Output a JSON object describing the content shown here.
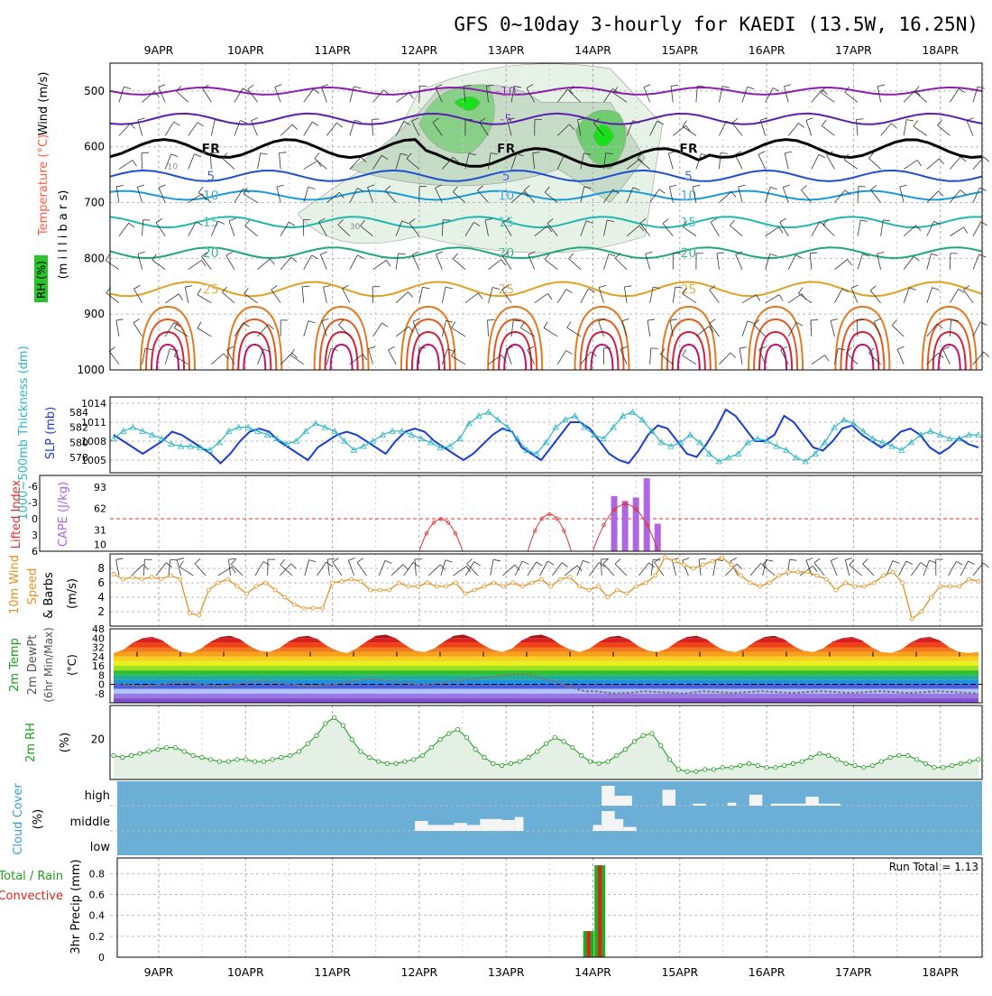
{
  "chart_data": {
    "title": "GFS 0~10day 3-hourly for KAEDI (13.5W, 16.25N)",
    "date_labels": [
      "9APR",
      "10APR",
      "11APR",
      "12APR",
      "13APR",
      "14APR",
      "15APR",
      "16APR",
      "17APR",
      "18APR"
    ],
    "panels": [
      {
        "id": "upper-air",
        "type": "contour",
        "ylabel_parts": [
          {
            "text": "Wind (m/s)",
            "color": "#000000"
          },
          {
            "text": "Temperature (°C)",
            "color": "#ff5a3c"
          },
          {
            "text": "(m i l l i b a r s)",
            "color": "#000000"
          },
          {
            "text": "RH (%)",
            "color": "#1ea51e"
          }
        ],
        "y_ticks": [
          "500",
          "600",
          "700",
          "800",
          "900",
          "1000"
        ],
        "ylim": [
          450,
          1000
        ],
        "temperature_isotherms": [
          {
            "label": "-10",
            "color": "#8a1fb0"
          },
          {
            "label": "-5",
            "color": "#5a1fb0"
          },
          {
            "label": "FR",
            "color": "#000000"
          },
          {
            "label": "5",
            "color": "#1f4fd0"
          },
          {
            "label": "10",
            "color": "#1a9ad8"
          },
          {
            "label": "15",
            "color": "#1fb8b0"
          },
          {
            "label": "20",
            "color": "#1fa878"
          },
          {
            "label": "25",
            "color": "#e0a020"
          }
        ],
        "rh_contours": [
          "10",
          "30"
        ]
      },
      {
        "id": "thickness-slp",
        "type": "line",
        "ylabel_left": "1000~500mb Thickness (dm)",
        "ylabel_right": "SLP (mb)",
        "left_ticks": [
          "584",
          "582",
          "580",
          "578"
        ],
        "right_ticks": [
          "1014",
          "1011",
          "1008",
          "1005"
        ],
        "series": [
          {
            "name": "1000~500mb Thickness (dm)",
            "color": "#29b6c6",
            "marker": "triangle",
            "ylim": [
              576,
              586
            ],
            "values": [
              580.5,
              581.5,
              582,
              581.5,
              581,
              580.5,
              579.8,
              579.5,
              579.5,
              579.3,
              579,
              580,
              581.5,
              582,
              582,
              581.5,
              581,
              580.5,
              579.8,
              580.2,
              581.5,
              582.5,
              582,
              581.5,
              580.2,
              579,
              579.5,
              580.2,
              581,
              581.5,
              581.5,
              581,
              580.5,
              580,
              579.3,
              579.5,
              580.5,
              582.5,
              583.5,
              584,
              583,
              582,
              580.5,
              579,
              578.5,
              580,
              582,
              583,
              583.5,
              582,
              581,
              580.5,
              582,
              583.5,
              584,
              583,
              581.5,
              580,
              579.5,
              580,
              581,
              580,
              578.5,
              577.5,
              578,
              578.5,
              580,
              580.5,
              580.2,
              579.5,
              579,
              578,
              577.5,
              578.5,
              580,
              582,
              583,
              582.5,
              581.5,
              580.5,
              580,
              579.5,
              579,
              580,
              581,
              581.5,
              581,
              580.5,
              580.5,
              581,
              581
            ]
          },
          {
            "name": "SLP (mb)",
            "color": "#1a3fcf",
            "ylim": [
              1003,
              1015
            ],
            "values": [
              1009,
              1008,
              1007,
              1006,
              1007,
              1008,
              1009.5,
              1009,
              1008,
              1007,
              1006,
              1004.5,
              1006,
              1008,
              1009.5,
              1010,
              1009.5,
              1008,
              1007,
              1006,
              1005,
              1007,
              1008,
              1009,
              1009.5,
              1009,
              1008,
              1007,
              1006,
              1008,
              1009.5,
              1010,
              1009.5,
              1008,
              1007,
              1006,
              1005,
              1006,
              1007.5,
              1009,
              1010,
              1009.5,
              1007,
              1006,
              1005,
              1007,
              1009,
              1011,
              1011,
              1010,
              1008,
              1006,
              1005,
              1004.5,
              1006.5,
              1009,
              1010.5,
              1010,
              1008,
              1006,
              1005.5,
              1007.5,
              1010,
              1013,
              1012,
              1010,
              1008,
              1008,
              1009,
              1012,
              1011,
              1009,
              1007,
              1006.5,
              1008,
              1010,
              1010.5,
              1009,
              1008,
              1007,
              1008,
              1009.5,
              1010,
              1009,
              1007,
              1006,
              1007,
              1008.5,
              1007.5,
              1007
            ]
          }
        ]
      },
      {
        "id": "cape-li",
        "type": "bar+line",
        "ylabel_left": "Lifted Index",
        "ylabel_right": "CAPE (J/kg)",
        "li_ticks": [
          "-6",
          "-3",
          "0",
          "3",
          "6"
        ],
        "cape_ticks": [
          "93",
          "62",
          "31",
          "10"
        ],
        "cape_bars": [
          {
            "x": 5.25,
            "value": 80
          },
          {
            "x": 5.375,
            "value": 73
          },
          {
            "x": 5.5,
            "value": 78
          },
          {
            "x": 5.625,
            "value": 106
          },
          {
            "x": 5.75,
            "value": 40
          }
        ],
        "lifted_index_arcs": [
          {
            "x_start": 3.0,
            "x_end": 3.5,
            "peak": -2.5
          },
          {
            "x_start": 4.25,
            "x_end": 4.75,
            "peak": -4.3
          },
          {
            "x_start": 5.0,
            "x_end": 5.75,
            "peak": -8
          }
        ],
        "colors": {
          "cape": "#b066e0",
          "lifted_index": "#e03030"
        }
      },
      {
        "id": "wind10m",
        "type": "line",
        "ylabel": "10m Wind Speed & Barbs (m/s)",
        "y_ticks": [
          "8",
          "6",
          "4",
          "2"
        ],
        "ylim": [
          0,
          10
        ],
        "series": [
          {
            "name": "10m Wind Speed",
            "color": "#e59020",
            "values": [
              7.2,
              6.5,
              6.8,
              6.5,
              6.8,
              6.5,
              7,
              6.5,
              1.8,
              1.5,
              5,
              6,
              6.5,
              5.5,
              4.5,
              5.5,
              6,
              5,
              4,
              3,
              2.5,
              2.5,
              2.5,
              6,
              6.2,
              6.5,
              6.2,
              5,
              5,
              5,
              6,
              5.5,
              5.5,
              6,
              5.5,
              5.5,
              6,
              4.5,
              5,
              5.5,
              6,
              5.5,
              6,
              5.5,
              6,
              6.5,
              5.5,
              6.5,
              6.8,
              5.5,
              5,
              5.5,
              4,
              5,
              4.5,
              5.5,
              6,
              7,
              9.5,
              9,
              8.5,
              8,
              8.5,
              9,
              9.5,
              8.5,
              7,
              6,
              5.5,
              6,
              7,
              7.5,
              7.5,
              7.5,
              7,
              6.5,
              5,
              6,
              5.5,
              5.5,
              6,
              7,
              7.5,
              6,
              1,
              2,
              4,
              5.5,
              5.5,
              5.5,
              6.5,
              6.2
            ]
          }
        ]
      },
      {
        "id": "temp2m",
        "type": "area",
        "ylabel": "2m Temp 2m DewPt (6hr Min/Max) (°C)",
        "y_ticks": [
          "48",
          "40",
          "32",
          "24",
          "16",
          "8",
          "0",
          "-8"
        ],
        "ylim": [
          -16,
          48
        ],
        "series": [
          {
            "name": "2m Temp",
            "color": "#b03030",
            "values": [
              27,
              30,
              36,
              40,
              41,
              38,
              32,
              28,
              27,
              31,
              37,
              41,
              42,
              39,
              33,
              29,
              28,
              31,
              37,
              41,
              42,
              39,
              33,
              29,
              27,
              31,
              37,
              42,
              43,
              40,
              34,
              29,
              28,
              31,
              37,
              42,
              43,
              40,
              34,
              30,
              28,
              31,
              38,
              42,
              43,
              40,
              34,
              30,
              28,
              31,
              37,
              41,
              42,
              39,
              33,
              29,
              28,
              31,
              37,
              41,
              42,
              39,
              33,
              29,
              28,
              31,
              37,
              41,
              42,
              39,
              33,
              29,
              28,
              31,
              37,
              40,
              41,
              38,
              32,
              28,
              27,
              30,
              36,
              40,
              41,
              38,
              32,
              28,
              27,
              28
            ]
          },
          {
            "name": "2m DewPt",
            "color": "#888888",
            "values": [
              1,
              0,
              -1,
              -2,
              -1,
              0,
              1,
              2,
              1,
              0,
              -1,
              -2,
              0,
              1,
              2,
              3,
              2,
              1,
              0,
              -1,
              -2,
              -1,
              0,
              1,
              2,
              3,
              5,
              4,
              3,
              2,
              1,
              0,
              0,
              1,
              2,
              3,
              4,
              5,
              6,
              7,
              8,
              8.5,
              8.5,
              7,
              4,
              2,
              -1,
              -4,
              -6,
              -6,
              -7,
              -8,
              -7.5,
              -7,
              -6,
              -6.5,
              -7,
              -7.5,
              -8,
              -7,
              -6,
              -6.5,
              -7,
              -7.5,
              -7,
              -6.5,
              -6,
              -6.5,
              -7,
              -7.5,
              -7,
              -6.5,
              -6,
              -6.5,
              -7,
              -7.5,
              -7,
              -6.5,
              -6,
              -6.5,
              -7,
              -7.5,
              -7,
              -6.5,
              -6,
              -6.5,
              -7,
              -7.5,
              -8
            ]
          }
        ]
      },
      {
        "id": "rh2m",
        "type": "area",
        "ylabel": "2m RH (%)",
        "y_ticks": [
          "20"
        ],
        "ylim": [
          0,
          37
        ],
        "series": [
          {
            "name": "2m RH",
            "color": "#1a9a1a",
            "values": [
              12,
              11,
              12,
              13,
              14,
              15,
              16,
              16,
              14,
              12,
              11,
              10,
              9,
              9,
              10,
              10,
              9,
              9,
              10,
              11,
              12,
              14,
              18,
              22,
              28,
              31,
              27,
              20,
              14,
              11,
              9,
              8,
              8,
              9,
              10,
              12,
              16,
              20,
              23,
              25,
              21,
              15,
              11,
              8,
              7,
              8,
              9,
              11,
              14,
              18,
              21,
              19,
              16,
              12,
              9,
              8,
              9,
              12,
              15,
              19,
              22,
              23,
              17,
              10,
              5,
              4,
              4,
              5,
              5,
              6,
              6,
              7,
              8,
              7,
              6,
              6,
              7,
              8,
              9,
              11,
              13,
              12,
              10,
              8,
              7,
              6,
              7,
              9,
              11,
              12,
              12,
              10,
              8,
              6,
              6,
              7,
              8,
              9,
              10
            ]
          }
        ]
      },
      {
        "id": "cloud",
        "type": "heatmap",
        "ylabel": "Cloud Cover (%)",
        "y_ticks": [
          "high",
          "middle",
          "low"
        ],
        "background": "#6baed6",
        "high_cells": [
          [
            5.1,
            5.25,
            1.0
          ],
          [
            5.25,
            5.45,
            0.5
          ],
          [
            5.8,
            5.95,
            0.8
          ],
          [
            6.15,
            6.3,
            0.1
          ],
          [
            6.55,
            6.65,
            0.15
          ],
          [
            6.8,
            6.95,
            0.55
          ],
          [
            7.05,
            7.45,
            0.1
          ],
          [
            7.45,
            7.6,
            0.45
          ],
          [
            7.6,
            7.85,
            0.1
          ]
        ],
        "middle_cells": [
          [
            2.95,
            3.1,
            0.5
          ],
          [
            3.1,
            3.4,
            0.3
          ],
          [
            3.4,
            3.55,
            0.4
          ],
          [
            3.55,
            3.7,
            0.3
          ],
          [
            3.7,
            3.95,
            0.6
          ],
          [
            3.95,
            4.1,
            0.55
          ],
          [
            4.1,
            4.2,
            0.7
          ],
          [
            5.0,
            5.1,
            0.3
          ],
          [
            5.1,
            5.25,
            1.0
          ],
          [
            5.25,
            5.35,
            0.6
          ],
          [
            5.35,
            5.5,
            0.2
          ]
        ]
      },
      {
        "id": "precip",
        "type": "bar",
        "ylabel_left": "Total / Rain",
        "ylabel_left2": "Convective",
        "ylabel": "3hr Precip (mm)",
        "y_ticks": [
          "0.8",
          "0.6",
          "0.4",
          "0.2",
          "0"
        ],
        "ylim": [
          0,
          0.95
        ],
        "run_total": "Run Total = 1.13",
        "bars": [
          {
            "x": 4.95,
            "total": 0.25,
            "convective": 0.25
          },
          {
            "x": 5.08,
            "total": 0.88,
            "convective": 0.88
          }
        ],
        "colors": {
          "total": "#1fae1f",
          "convective": "#e02020"
        }
      }
    ]
  }
}
